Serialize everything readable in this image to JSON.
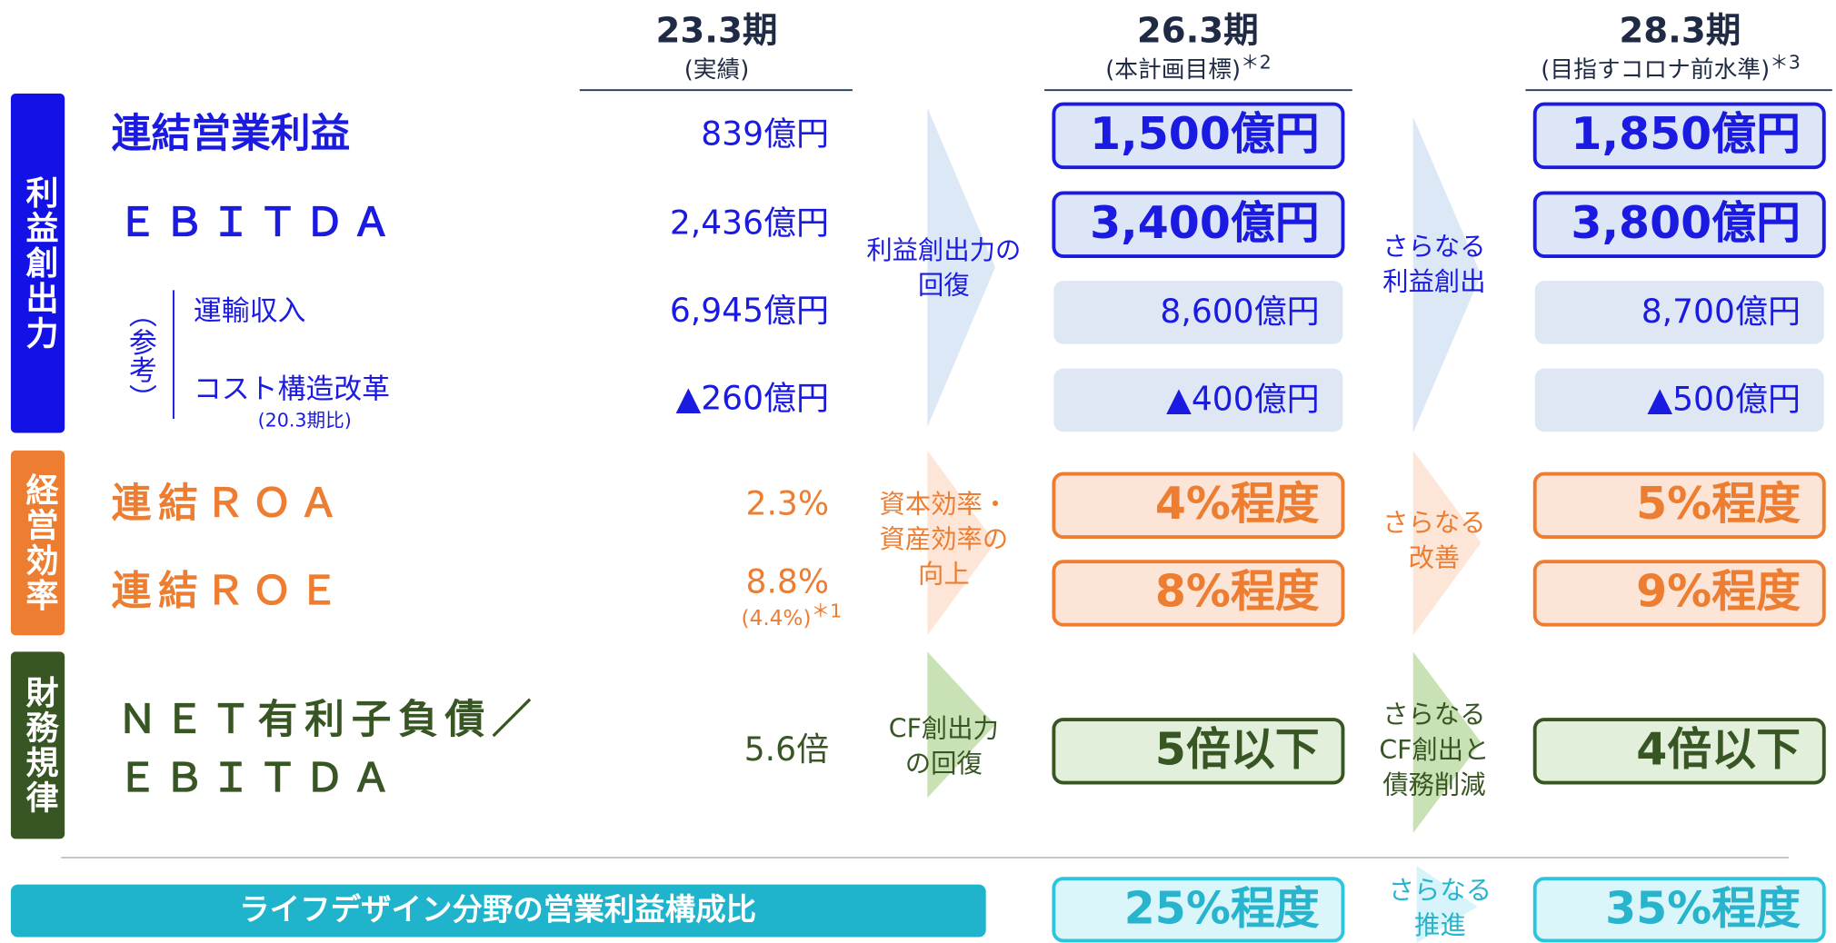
{
  "columns": [
    {
      "title": "23.3期",
      "note": "(実績)"
    },
    {
      "title": "26.3期",
      "note": "(本計画目標)",
      "mark": "＊2"
    },
    {
      "title": "28.3期",
      "note": "(目指すコロナ前水準)",
      "mark": "＊3"
    }
  ],
  "sections": [
    {
      "label": "利益創出力",
      "reference": "（参考）",
      "arrow1": [
        "利益創出力の",
        "回復"
      ],
      "arrow2": [
        "さらなる",
        "利益創出"
      ],
      "rows": [
        {
          "name": [
            "連結営業利益"
          ],
          "values": [
            "839億円",
            "1,500億円",
            "1,850億円"
          ]
        },
        {
          "name": [
            "ＥＢＩＴＤＡ"
          ],
          "values": [
            "2,436億円",
            "3,400億円",
            "3,800億円"
          ]
        },
        {
          "name": [
            "運輸収入"
          ],
          "values": [
            "6,945億円",
            "8,600億円",
            "8,700億円"
          ]
        },
        {
          "name": [
            "コスト構造改革"
          ],
          "sub": "(20.3期比)",
          "values": [
            "▲260億円",
            "▲400億円",
            "▲500億円"
          ]
        }
      ]
    },
    {
      "label": "経営効率",
      "arrow1": [
        "資本効率・",
        "資産効率の",
        "向上"
      ],
      "arrow2": [
        "さらなる",
        "改善"
      ],
      "rows": [
        {
          "name": [
            "連結ＲＯＡ"
          ],
          "values": [
            "2.3%",
            "4%程度",
            "5%程度"
          ]
        },
        {
          "name": [
            "連結ＲＯＥ"
          ],
          "values": [
            "8.8%",
            "8%程度",
            "9%程度"
          ],
          "value_note": "(4.4%)",
          "value_mark": "＊1"
        }
      ]
    },
    {
      "label": "財務規律",
      "arrow1": [
        "CF創出力",
        "の回復"
      ],
      "arrow2": [
        "さらなる",
        "CF創出と",
        "債務削減"
      ],
      "rows": [
        {
          "name": [
            "ＮＥＴ有利子負債／",
            "ＥＢＩＴＤＡ"
          ],
          "values": [
            "5.6倍",
            "5倍以下",
            "4倍以下"
          ]
        }
      ]
    },
    {
      "label": "ライフデザイン分野の営業利益構成比",
      "arrow2": [
        "さらなる",
        "推進"
      ],
      "targets": [
        "25%程度",
        "35%程度"
      ]
    }
  ]
}
